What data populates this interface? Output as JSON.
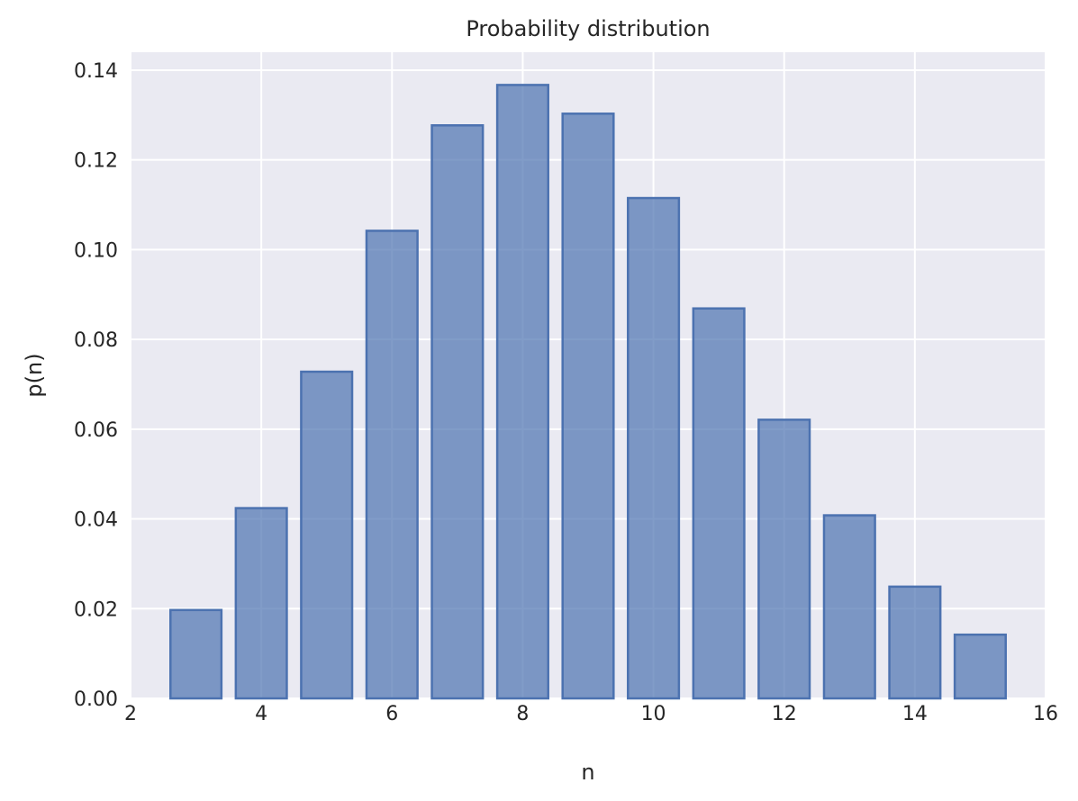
{
  "chart_data": {
    "type": "bar",
    "title": "Probability distribution",
    "xlabel": "n",
    "ylabel": "p(n)",
    "x": [
      3,
      4,
      5,
      6,
      7,
      8,
      9,
      10,
      11,
      12,
      13,
      14,
      15
    ],
    "values": [
      0.0197,
      0.0424,
      0.0728,
      0.1042,
      0.1277,
      0.1367,
      0.1303,
      0.1115,
      0.0869,
      0.0621,
      0.0408,
      0.0249,
      0.0142
    ],
    "xlim": [
      2,
      16
    ],
    "ylim": [
      0,
      0.144
    ],
    "xticks": [
      "2",
      "4",
      "6",
      "8",
      "10",
      "12",
      "14",
      "16"
    ],
    "yticks": [
      "0.00",
      "0.02",
      "0.04",
      "0.06",
      "0.08",
      "0.10",
      "0.12",
      "0.14"
    ],
    "grid": true,
    "colors": {
      "bar": "#4c72b0",
      "background": "#eaeaf2"
    }
  }
}
